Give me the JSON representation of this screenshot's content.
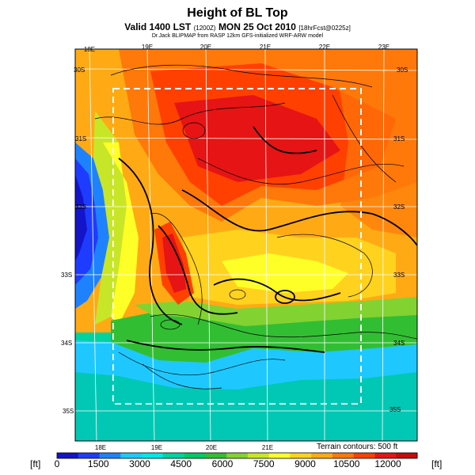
{
  "title": "Height of BL Top",
  "subtitle_main": "Valid 1400 LST",
  "subtitle_time": "(1200Z)",
  "subtitle_date": "MON 25 Oct 2010",
  "subtitle_fcst": "[18hrFcst@0225z]",
  "credit": "Dr.Jack BLIPMAP from RASP 12km GFS-initialized WRF-ARW model",
  "terrain_note": "Terrain contours: 500 ft",
  "units_left": "[ft]",
  "units_right": "[ft]",
  "lon_top": [
    "18E",
    "19E",
    "20E",
    "21E",
    "22E",
    "23E"
  ],
  "lon_bottom": [
    "18E",
    "19E",
    "20E",
    "21E"
  ],
  "lat_left": [
    "30S",
    "31S",
    "32S",
    "33S",
    "34S",
    "35S"
  ],
  "lat_right": [
    "30S",
    "31S",
    "32S",
    "33S",
    "34S",
    "35S"
  ],
  "colorbar": {
    "ticks": [
      "0",
      "1500",
      "3000",
      "4500",
      "6000",
      "7500",
      "9000",
      "10500",
      "12000"
    ],
    "colors": [
      "#1414c8",
      "#1e3cff",
      "#1e82ff",
      "#1ec8ff",
      "#00e6e6",
      "#00d2a0",
      "#00c864",
      "#32be32",
      "#82d232",
      "#c8e628",
      "#ffff28",
      "#ffd21e",
      "#ffaa14",
      "#ff780a",
      "#ff4000",
      "#e61414",
      "#c80a0a"
    ]
  }
}
